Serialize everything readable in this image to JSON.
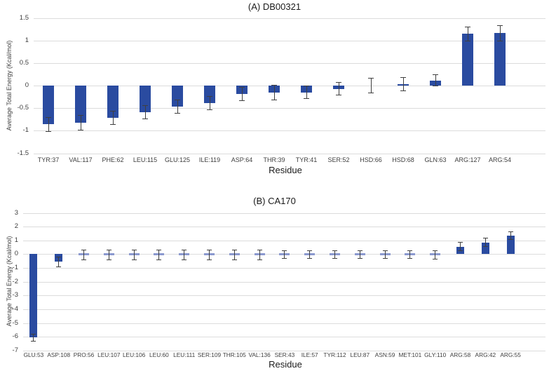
{
  "figure": {
    "background": "#ffffff",
    "bar_color": "#2A4BA0",
    "near_zero_dash_color": "#8B99CF",
    "error_bar_color": "#3f3f3f",
    "gridline_color": "#dcdcdc",
    "text_color": "#404040"
  },
  "chart_data": [
    {
      "type": "bar",
      "title": "(A) DB00321",
      "xlabel": "Residue",
      "ylabel": "Average Total Energy (Kcal/mol)",
      "ylim": [
        -1.5,
        1.5
      ],
      "grid": true,
      "legend": "none",
      "error_bars": true,
      "yticks": [
        1.5,
        1,
        0.5,
        0,
        -0.5,
        -1,
        -1.5
      ],
      "ytick_labels": [
        "1.5",
        "1",
        "0.5",
        "0",
        "-0.5",
        "-1",
        "-1.5"
      ],
      "categories": [
        "TYR:37",
        "VAL:117",
        "PHE:62",
        "LEU:115",
        "GLU:125",
        "ILE:119",
        "ASP:64",
        "THR:39",
        "TYR:41",
        "SER:52",
        "HSD:66",
        "HSD:68",
        "GLN:63",
        "ARG:127",
        "ARG:54"
      ],
      "values": [
        -0.86,
        -0.82,
        -0.71,
        -0.59,
        -0.46,
        -0.38,
        -0.18,
        -0.15,
        -0.15,
        -0.07,
        0.0,
        0.04,
        0.12,
        1.15,
        1.17
      ],
      "errors": [
        0.16,
        0.16,
        0.15,
        0.15,
        0.15,
        0.15,
        0.15,
        0.16,
        0.14,
        0.14,
        0.16,
        0.15,
        0.12,
        0.16,
        0.17
      ]
    },
    {
      "type": "bar",
      "title": "(B) CA170",
      "xlabel": "Residue",
      "ylabel": "Average Total Energy (Kcal/mol)",
      "ylim": [
        -7,
        3
      ],
      "grid": true,
      "legend": "none",
      "error_bars": true,
      "yticks": [
        3,
        2,
        1,
        0,
        -1,
        -2,
        -3,
        -4,
        -5,
        -6,
        -7
      ],
      "ytick_labels": [
        "3",
        "2",
        "1",
        "0",
        "-1",
        "-2",
        "-3",
        "-4",
        "-5",
        "-6",
        "-7"
      ],
      "categories": [
        "GLU:53",
        "ASP:108",
        "PRO:56",
        "LEU:107",
        "LEU:106",
        "LEU:60",
        "LEU:111",
        "SER:109",
        "THR:105",
        "VAL:136",
        "SER:43",
        "ILE:57",
        "TYR:112",
        "LEU:87",
        "ASN:59",
        "MET:101",
        "GLY:110",
        "ARG:58",
        "ARG:42",
        "ARG:55"
      ],
      "values": [
        -6.05,
        -0.55,
        -0.05,
        -0.04,
        -0.04,
        -0.04,
        -0.04,
        -0.04,
        -0.04,
        -0.04,
        -0.03,
        -0.03,
        -0.03,
        -0.03,
        -0.03,
        -0.03,
        -0.06,
        0.55,
        0.85,
        1.35
      ],
      "errors": [
        0.25,
        0.35,
        0.35,
        0.35,
        0.35,
        0.35,
        0.35,
        0.35,
        0.35,
        0.35,
        0.3,
        0.3,
        0.3,
        0.3,
        0.3,
        0.3,
        0.3,
        0.3,
        0.3,
        0.3
      ]
    }
  ]
}
